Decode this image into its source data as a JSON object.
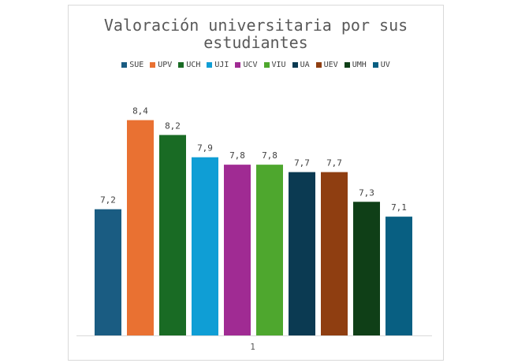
{
  "chart_data": {
    "type": "bar",
    "title": "Valoración universitaria por sus estudiantes",
    "categories": [
      "1"
    ],
    "series": [
      {
        "name": "SUE",
        "value": 7.2,
        "label": "7,2",
        "color": "#1a5c82"
      },
      {
        "name": "UPV",
        "value": 8.4,
        "label": "8,4",
        "color": "#e97132"
      },
      {
        "name": "UCH",
        "value": 8.2,
        "label": "8,2",
        "color": "#196b24"
      },
      {
        "name": "UJI",
        "value": 7.9,
        "label": "7,9",
        "color": "#0f9ed5"
      },
      {
        "name": "UCV",
        "value": 7.8,
        "label": "7,8",
        "color": "#a02b93"
      },
      {
        "name": "VIU",
        "value": 7.8,
        "label": "7,8",
        "color": "#4ea72e"
      },
      {
        "name": "UA",
        "value": 7.7,
        "label": "7,7",
        "color": "#0b3a52"
      },
      {
        "name": "UEV",
        "value": 7.7,
        "label": "7,7",
        "color": "#8f3e11"
      },
      {
        "name": "UMH",
        "value": 7.3,
        "label": "7,3",
        "color": "#0f3f17"
      },
      {
        "name": "UV",
        "value": 7.1,
        "label": "7,1",
        "color": "#085f82"
      }
    ],
    "ylim": [
      5.5,
      9
    ],
    "grid": false,
    "legend_position": "top"
  }
}
